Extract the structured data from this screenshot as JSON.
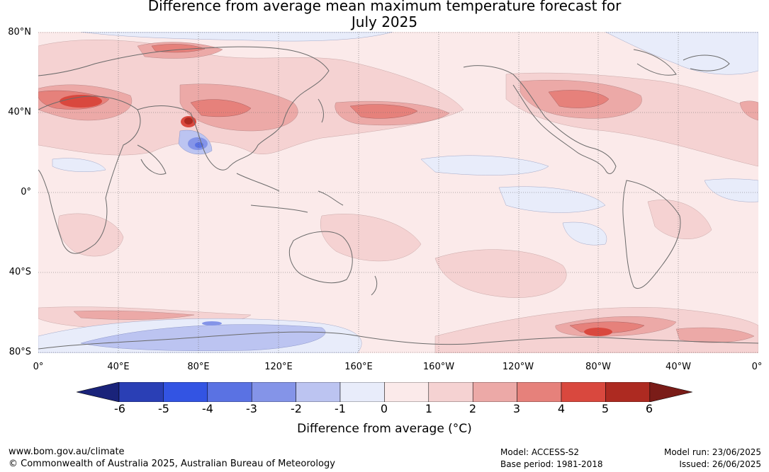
{
  "title_line1": "Difference from average mean maximum temperature forecast for",
  "title_line2": "July 2025",
  "lat_labels": [
    "80°N",
    "40°N",
    "0°",
    "40°S",
    "80°S"
  ],
  "lon_labels": [
    "0°",
    "40°E",
    "80°E",
    "120°E",
    "160°E",
    "160°W",
    "120°W",
    "80°W",
    "40°W",
    "0°"
  ],
  "colorbar": {
    "ticks": [
      "-6",
      "-5",
      "-4",
      "-3",
      "-2",
      "-1",
      "0",
      "1",
      "2",
      "3",
      "4",
      "5",
      "6"
    ],
    "colors": [
      "#1a237a",
      "#2a3fb5",
      "#3354e3",
      "#5a72e3",
      "#8494e8",
      "#bcc4f1",
      "#e8ecfa",
      "#fbeaea",
      "#f5d2d2",
      "#eca9a7",
      "#e6817b",
      "#d9483e",
      "#ad2a21",
      "#7a1c18"
    ],
    "label": "Difference from average ($^\\circ$C)",
    "label_display": "Difference from average (°C)"
  },
  "footer": {
    "url": "www.bom.gov.au/climate",
    "copyright": "© Commonwealth of Australia 2025, Australian Bureau of Meteorology",
    "model": "Model: ACCESS-S2",
    "base_period": "Base period: 1981-2018",
    "model_run": "Model run: 23/06/2025",
    "issued": "Issued: 26/06/2025"
  }
}
